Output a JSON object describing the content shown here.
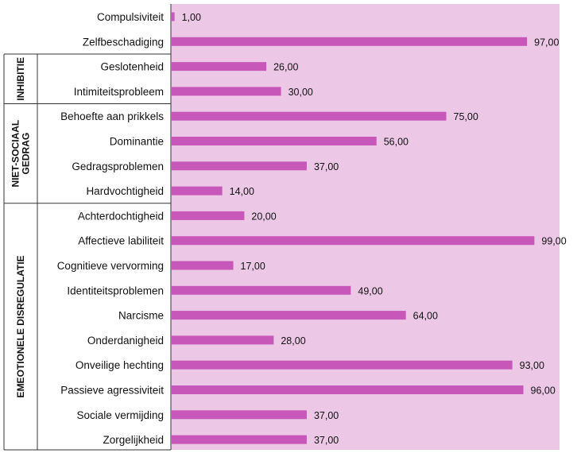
{
  "chart_data": {
    "type": "bar",
    "orientation": "horizontal",
    "xlim": [
      0,
      100
    ],
    "grid": false,
    "colors": {
      "bar": "#c757b8",
      "plot_background": "#ecc8e6",
      "frame": "#333333"
    },
    "categories": [
      "Compulsiviteit",
      "Zelfbeschadiging",
      "Geslotenheid",
      "Intimiteitsprobleem",
      "Behoefte aan prikkels",
      "Dominantie",
      "Gedragsproblemen",
      "Hardvochtigheid",
      "Achterdochtigheid",
      "Affectieve labiliteit",
      "Cognitieve vervorming",
      "Identiteitsproblemen",
      "Narcisme",
      "Onderdanigheid",
      "Onveilige hechting",
      "Passieve agressiviteit",
      "Sociale vermijding",
      "Zorgelijkheid"
    ],
    "values": [
      1,
      97,
      26,
      30,
      75,
      56,
      37,
      14,
      20,
      99,
      17,
      49,
      64,
      28,
      93,
      96,
      37,
      37
    ],
    "value_labels": [
      "1,00",
      "97,00",
      "26,00",
      "30,00",
      "75,00",
      "56,00",
      "37,00",
      "14,00",
      "20,00",
      "99,00",
      "17,00",
      "49,00",
      "64,00",
      "28,00",
      "93,00",
      "96,00",
      "37,00",
      "37,00"
    ],
    "groups": [
      {
        "name": "INHIBITIE",
        "lines": [
          "INHIBITIE"
        ],
        "start_index": 2,
        "end_index": 3
      },
      {
        "name": "NIET-SOCIAAL GEDRAG",
        "lines": [
          "NIET-SOCIAAL",
          "GEDRAG"
        ],
        "start_index": 4,
        "end_index": 7
      },
      {
        "name": "EMEOTIONELE DISREGULATIE",
        "lines": [
          "EMEOTIONELE DISREGULATIE"
        ],
        "start_index": 8,
        "end_index": 17
      }
    ]
  }
}
